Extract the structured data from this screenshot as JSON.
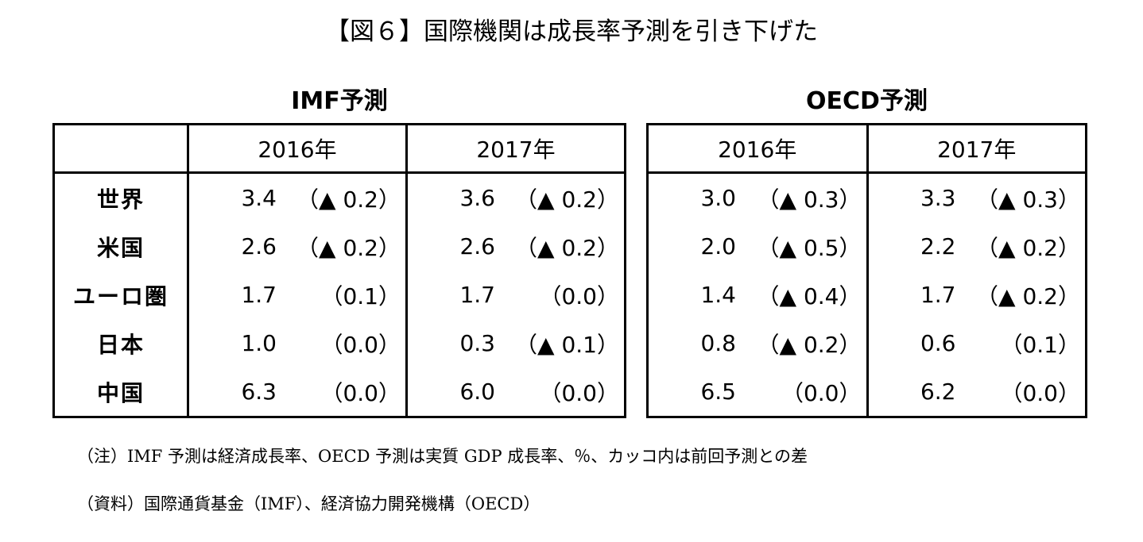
{
  "title": "【図６】国際機関は成長率予測を引き下げた",
  "imf": {
    "heading": "IMF予測",
    "years": [
      "2016年",
      "2017年"
    ],
    "rows": [
      {
        "label": "世界",
        "y2016": {
          "value": "3.4",
          "change": "（▲ 0.2）"
        },
        "y2017": {
          "value": "3.6",
          "change": "（▲ 0.2）"
        }
      },
      {
        "label": "米国",
        "y2016": {
          "value": "2.6",
          "change": "（▲ 0.2）"
        },
        "y2017": {
          "value": "2.6",
          "change": "（▲ 0.2）"
        }
      },
      {
        "label": "ユーロ圏",
        "y2016": {
          "value": "1.7",
          "change": "（0.1）"
        },
        "y2017": {
          "value": "1.7",
          "change": "（0.0）"
        }
      },
      {
        "label": "日本",
        "y2016": {
          "value": "1.0",
          "change": "（0.0）"
        },
        "y2017": {
          "value": "0.3",
          "change": "（▲ 0.1）"
        }
      },
      {
        "label": "中国",
        "y2016": {
          "value": "6.3",
          "change": "（0.0）"
        },
        "y2017": {
          "value": "6.0",
          "change": "（0.0）"
        }
      }
    ]
  },
  "oecd": {
    "heading": "OECD予測",
    "years": [
      "2016年",
      "2017年"
    ],
    "rows": [
      {
        "y2016": {
          "value": "3.0",
          "change": "（▲ 0.3）"
        },
        "y2017": {
          "value": "3.3",
          "change": "（▲ 0.3）"
        }
      },
      {
        "y2016": {
          "value": "2.0",
          "change": "（▲ 0.5）"
        },
        "y2017": {
          "value": "2.2",
          "change": "（▲ 0.2）"
        }
      },
      {
        "y2016": {
          "value": "1.4",
          "change": "（▲ 0.4）"
        },
        "y2017": {
          "value": "1.7",
          "change": "（▲ 0.2）"
        }
      },
      {
        "y2016": {
          "value": "0.8",
          "change": "（▲ 0.2）"
        },
        "y2017": {
          "value": "0.6",
          "change": "（0.1）"
        }
      },
      {
        "y2016": {
          "value": "6.5",
          "change": "（0.0）"
        },
        "y2017": {
          "value": "6.2",
          "change": "（0.0）"
        }
      }
    ]
  },
  "notes": {
    "note": "（注）IMF 予測は経済成長率、OECD 予測は実質 GDP 成長率、％、カッコ内は前回予測との差",
    "source": "（資料）国際通貨基金（IMF）、経済協力開発機構（OECD）"
  }
}
